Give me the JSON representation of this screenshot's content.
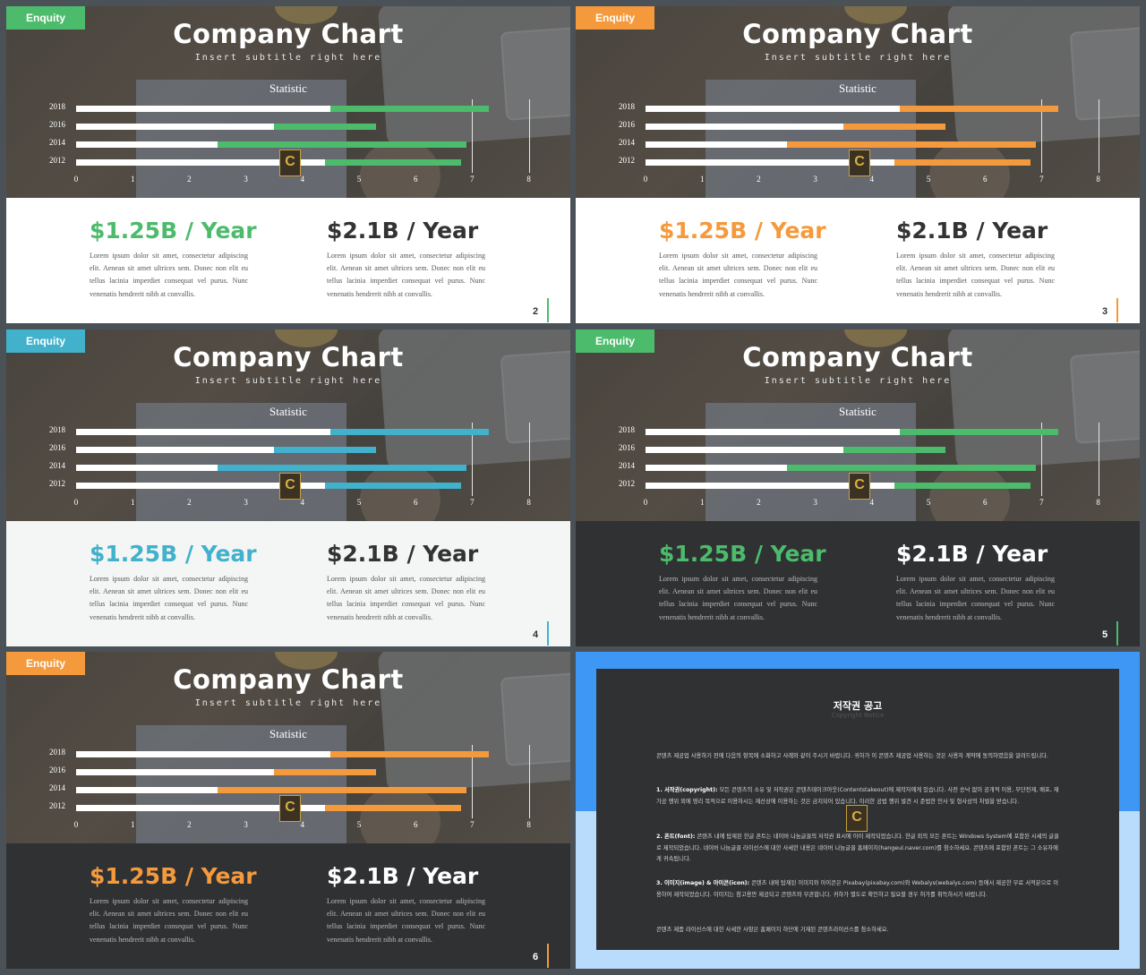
{
  "slides": [
    {
      "badge": "Enquity",
      "accent": "#4cbb6c",
      "bottom_bg": "#ffffff",
      "text_color": "#555555",
      "right_value_color": "#333333",
      "page": "2"
    },
    {
      "badge": "Enquity",
      "accent": "#f59a3c",
      "bottom_bg": "#ffffff",
      "text_color": "#555555",
      "right_value_color": "#333333",
      "page": "3"
    },
    {
      "badge": "Enquity",
      "accent": "#41b1cc",
      "bottom_bg": "#f4f6f5",
      "text_color": "#555555",
      "right_value_color": "#333333",
      "page": "4"
    },
    {
      "badge": "Enquity",
      "accent": "#4cbb6c",
      "bottom_bg": "#2f3133",
      "text_color": "#bbbbbb",
      "right_value_color": "#ffffff",
      "page": "5"
    },
    {
      "badge": "Enquity",
      "accent": "#f59a3c",
      "bottom_bg": "#2f3133",
      "text_color": "#bbbbbb",
      "right_value_color": "#ffffff",
      "page": "6"
    }
  ],
  "content": {
    "title": "Company Chart",
    "subtitle": "Insert subtitle right here",
    "chart_title": "Statistic",
    "left_value": "$1.25B / Year",
    "right_value": "$2.1B / Year",
    "body": "Lorem ipsum dolor sit amet, consectetur adipiscing elit. Aenean sit amet ultrices sem. Donec non elit eu tellus lacinia imperdiet consequat vel purus. Nunc venenatis hendrerit nibh at convallis.",
    "logo_letter": "C"
  },
  "chart_data": {
    "type": "bar",
    "orientation": "horizontal",
    "stacked": true,
    "title": "Statistic",
    "categories": [
      "2018",
      "2016",
      "2014",
      "2012"
    ],
    "series": [
      {
        "values": [
          4.5,
          3.5,
          2.5,
          4.4
        ],
        "color": "#ffffff"
      },
      {
        "values": [
          2.8,
          1.8,
          4.4,
          2.4
        ]
      }
    ],
    "xlim": [
      0,
      8
    ],
    "xticks": [
      "0",
      "1",
      "2",
      "3",
      "4",
      "5",
      "6",
      "7",
      "8"
    ],
    "grid": true
  },
  "copyright": {
    "title": "저작권 공고",
    "subtitle": "Copyright Notice",
    "p1": "콘텐츠 제공업 사용하기 전에 다음의 항목에 소화하고 사례와 같이 주시기 바랍니다. 귀하가 이 콘텐츠 제공업 사용하는 것은 사용자 계약에 동의하였음을 알려드립니다.",
    "p2_bold": "1. 서작권(copyright):",
    "p2": " 모든 콘텐츠의 소유 및 저작권은 콘텐츠테이크아웃(Contentstakeout)에 제작자에게 있습니다. 사전 승낙 없이 공개적 이용, 무단전재, 배포, 재가공 행위 외에 영리 목적으로 이용하시는 재산상에 이용하는 것은 금지되어 있습니다. 이러한 공법 행위 발견 시 준법한 민사 및 형사상의 처벌을 받습니다.",
    "p3_bold": "2. 폰트(font):",
    "p3": " 콘텐츠 내에 탑재된 한글 폰트는 네이버 나눔글꼴의 저작권 표시에 아이 제작되었습니다. 한글 외의 모든 폰트는 Windows System에 포함된 시세의 글꼴로 제작되었습니다. 네이버 나눔글꼴 라이선스에 대한 사세한 내용은 네이버 나눔글꼴 홈페이지(hangeul.naver.com)를 참소하세요. 콘텐츠에 포함된 폰트는 그 소유자에게 귀속됩니다.",
    "p4_bold": "3. 이미지(image) & 아이콘(icon):",
    "p4": " 콘텐츠 내에 탑재된 이미지와 아이콘은 Pixabay(pixabay.com)와 Webalys(webalys.com) 등에서 제공한 무료 서적분으로 이용하여 제작되었습니다. 이미지는 참고용만 제공되고 콘텐츠와 무관합니다. 귀하가 별도로 확인하고 필요할 경우 허가를 취득하시기 바랍니다.",
    "p5": "콘텐츠 제품 라이선스에 대한 사세한 사항은 홈페이지 하단에 기재된 콘텐츠라이선스를 참소하세요."
  }
}
